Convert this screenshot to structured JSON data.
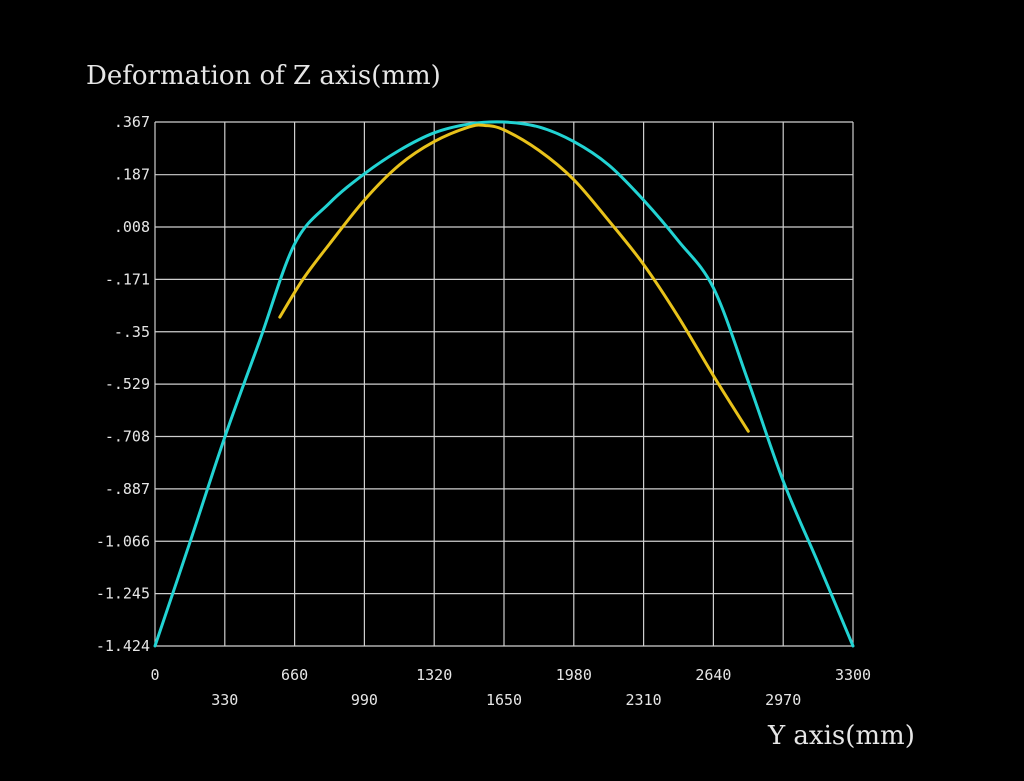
{
  "chart_data": {
    "type": "line",
    "title": "",
    "ylabel": "Deformation of Z axis(mm)",
    "xlabel": "Y axis(mm)",
    "xlim": [
      0,
      3300
    ],
    "ylim": [
      -1.424,
      0.367
    ],
    "x_ticks": [
      0,
      330,
      660,
      990,
      1320,
      1650,
      1980,
      2310,
      2640,
      2970,
      3300
    ],
    "x_tick_labels": [
      "0",
      "330",
      "660",
      "990",
      "1320",
      "1650",
      "1980",
      "2310",
      "2640",
      "2970",
      "3300"
    ],
    "y_ticks": [
      0.367,
      0.187,
      0.008,
      -0.171,
      -0.35,
      -0.529,
      -0.708,
      -0.887,
      -1.066,
      -1.245,
      -1.424
    ],
    "y_tick_labels": [
      ".367",
      ".187",
      ".008",
      "-.171",
      "-.35",
      "-.529",
      "-.708",
      "-.887",
      "-1.066",
      "-1.245",
      "-1.424"
    ],
    "grid": true,
    "series": [
      {
        "color": "#22d3d3",
        "x": [
          0,
          165,
          330,
          495,
          660,
          825,
          990,
          1155,
          1320,
          1485,
          1650,
          1815,
          1980,
          2145,
          2310,
          2475,
          2640,
          2805,
          2970,
          3135,
          3300
        ],
        "y": [
          -1.424,
          -1.07,
          -0.71,
          -0.38,
          -0.05,
          0.09,
          0.19,
          0.27,
          0.33,
          0.36,
          0.367,
          0.35,
          0.3,
          0.22,
          0.1,
          -0.04,
          -0.2,
          -0.52,
          -0.86,
          -1.14,
          -1.424
        ]
      },
      {
        "color": "#e8c21a",
        "x": [
          590,
          700,
          825,
          990,
          1155,
          1320,
          1485,
          1560,
          1650,
          1815,
          1980,
          2145,
          2310,
          2475,
          2640,
          2805
        ],
        "y": [
          -0.3,
          -0.17,
          -0.05,
          0.1,
          0.22,
          0.3,
          0.35,
          0.355,
          0.34,
          0.27,
          0.17,
          0.03,
          -0.12,
          -0.3,
          -0.5,
          -0.69
        ]
      }
    ]
  }
}
